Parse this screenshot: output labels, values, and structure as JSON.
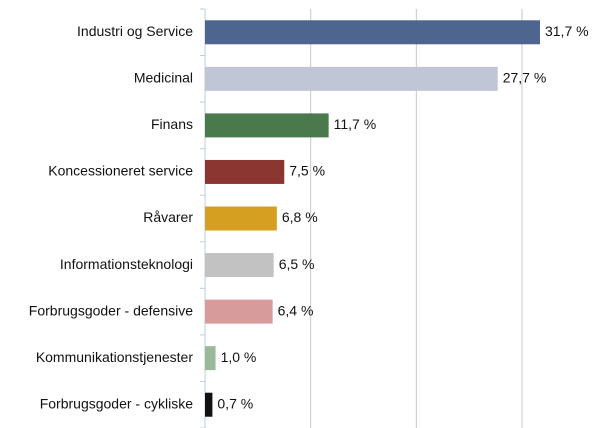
{
  "chart_data": {
    "type": "barh",
    "categories": [
      "Industri og Service",
      "Medicinal",
      "Finans",
      "Koncessioneret service",
      "Råvarer",
      "Informationsteknologi",
      "Forbrugsgoder - defensive",
      "Kommunikationstjenester",
      "Forbrugsgoder - cykliske"
    ],
    "values": [
      31.7,
      27.7,
      11.7,
      7.5,
      6.8,
      6.5,
      6.4,
      1.0,
      0.7
    ],
    "value_labels": [
      "31,7 %",
      "27,7 %",
      "11,7 %",
      "7,5 %",
      "6,8 %",
      "6,5 %",
      "6,4 %",
      "1,0 %",
      "0,7 %"
    ],
    "colors": [
      "#4e6590",
      "#c0c6d6",
      "#4a7a4c",
      "#8b3530",
      "#d5a022",
      "#c2c2c2",
      "#d79b9c",
      "#9ab99a",
      "#111111"
    ],
    "xlim": [
      0,
      37
    ],
    "xticks": [
      0,
      10,
      20,
      30
    ],
    "grid": true
  }
}
